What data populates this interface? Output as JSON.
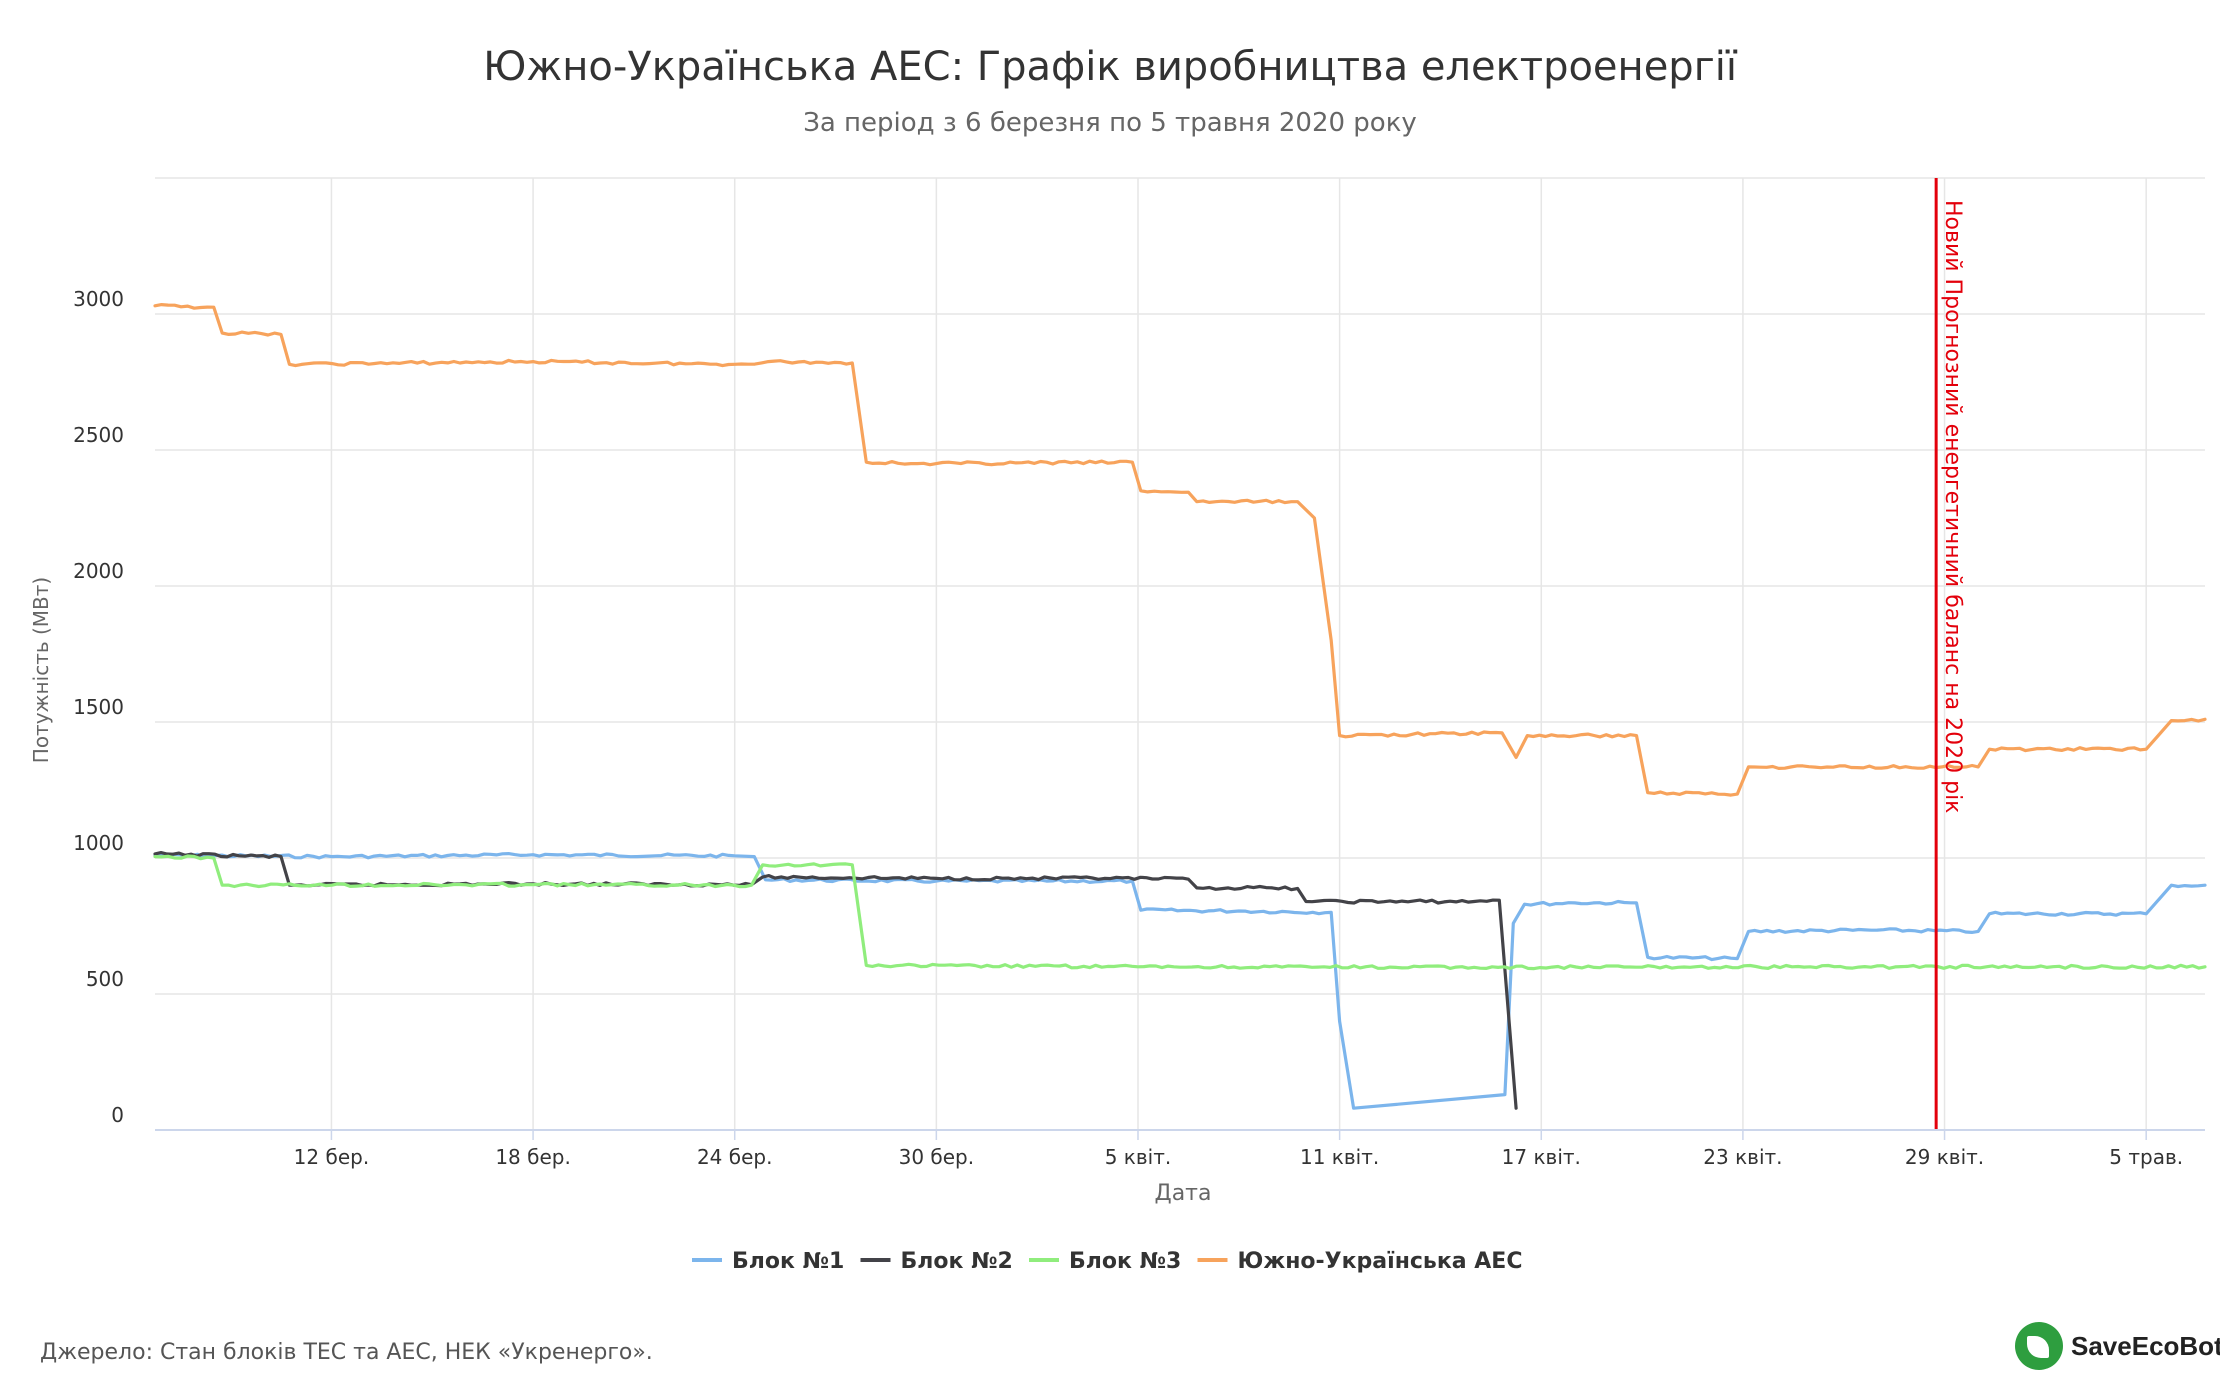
{
  "title": "Южно-Українська АЕС: Графік виробництва електроенергії",
  "subtitle": "За період з 6 березня по 5 травня 2020 року",
  "source": "Джерело: Стан блоків ТЕС та АЕС, НЕК «Укренерго».",
  "brand": "SaveEcoBot",
  "chart_data": {
    "type": "line",
    "title": "Южно-Українська АЕС: Графік виробництва електроенергії",
    "subtitle": "За період з 6 березня по 5 травня 2020 року",
    "xlabel": "Дата",
    "ylabel": "Потужність (МВт)",
    "x_range": [
      "2020-03-06T18:00",
      "2020-05-06T18:00"
    ],
    "ylim": [
      0,
      3500
    ],
    "y_ticks": [
      0,
      500,
      1000,
      1500,
      2000,
      2500,
      3000
    ],
    "x_ticks": [
      {
        "date": "2020-03-12",
        "label": "12 бер."
      },
      {
        "date": "2020-03-18",
        "label": "18 бер."
      },
      {
        "date": "2020-03-24",
        "label": "24 бер."
      },
      {
        "date": "2020-03-30",
        "label": "30 бер."
      },
      {
        "date": "2020-04-05",
        "label": "5 квіт."
      },
      {
        "date": "2020-04-11",
        "label": "11 квіт."
      },
      {
        "date": "2020-04-17",
        "label": "17 квіт."
      },
      {
        "date": "2020-04-23",
        "label": "23 квіт."
      },
      {
        "date": "2020-04-29",
        "label": "29 квіт."
      },
      {
        "date": "2020-05-05",
        "label": "5 трав."
      }
    ],
    "grid": true,
    "legend_position": "bottom-center",
    "annotation": {
      "date": "2020-04-28T18:00",
      "label": "Новий Прогнозний енергетичний баланс на 2020 рік",
      "color": "#e3000b"
    },
    "series": [
      {
        "name": "Блок №1",
        "color": "#7cb5ec",
        "points": [
          [
            "2020-03-06T18:00",
            1010
          ],
          [
            "2020-03-12T00:00",
            1005
          ],
          [
            "2020-03-18T00:00",
            1012
          ],
          [
            "2020-03-24T00:00",
            1008
          ],
          [
            "2020-03-24T14:00",
            1005
          ],
          [
            "2020-03-24T22:00",
            920
          ],
          [
            "2020-03-30T00:00",
            915
          ],
          [
            "2020-04-04T20:00",
            915
          ],
          [
            "2020-04-05T02:00",
            808
          ],
          [
            "2020-04-08T00:00",
            805
          ],
          [
            "2020-04-10T18:00",
            800
          ],
          [
            "2020-04-11T00:00",
            400
          ],
          [
            "2020-04-11T10:00",
            80
          ],
          [
            "2020-04-15T22:00",
            130
          ],
          [
            "2020-04-16T04:00",
            760
          ],
          [
            "2020-04-16T12:00",
            830
          ],
          [
            "2020-04-18T00:00",
            835
          ],
          [
            "2020-04-19T20:00",
            835
          ],
          [
            "2020-04-20T04:00",
            635
          ],
          [
            "2020-04-22T20:00",
            630
          ],
          [
            "2020-04-23T04:00",
            730
          ],
          [
            "2020-04-27T00:00",
            735
          ],
          [
            "2020-04-30T00:00",
            730
          ],
          [
            "2020-04-30T08:00",
            795
          ],
          [
            "2020-05-05T00:00",
            795
          ],
          [
            "2020-05-05T18:00",
            900
          ],
          [
            "2020-05-06T18:00",
            900
          ]
        ]
      },
      {
        "name": "Блок №2",
        "color": "#434348",
        "points": [
          [
            "2020-03-06T18:00",
            1015
          ],
          [
            "2020-03-10T12:00",
            1005
          ],
          [
            "2020-03-10T18:00",
            900
          ],
          [
            "2020-03-18T00:00",
            905
          ],
          [
            "2020-03-24T12:00",
            902
          ],
          [
            "2020-03-24T20:00",
            930
          ],
          [
            "2020-03-30T00:00",
            925
          ],
          [
            "2020-04-04T00:00",
            925
          ],
          [
            "2020-04-06T12:00",
            922
          ],
          [
            "2020-04-06T18:00",
            890
          ],
          [
            "2020-04-09T00:00",
            890
          ],
          [
            "2020-04-09T18:00",
            888
          ],
          [
            "2020-04-10T00:00",
            840
          ],
          [
            "2020-04-15T00:00",
            840
          ],
          [
            "2020-04-15T18:00",
            845
          ],
          [
            "2020-04-16T06:00",
            80
          ]
        ]
      },
      {
        "name": "Блок №3",
        "color": "#90ed7d",
        "points": [
          [
            "2020-03-06T18:00",
            1005
          ],
          [
            "2020-03-08T12:00",
            1000
          ],
          [
            "2020-03-08T18:00",
            900
          ],
          [
            "2020-03-18T00:00",
            902
          ],
          [
            "2020-03-24T12:00",
            900
          ],
          [
            "2020-03-24T20:00",
            975
          ],
          [
            "2020-03-27T12:00",
            975
          ],
          [
            "2020-03-27T22:00",
            605
          ],
          [
            "2020-04-05T00:00",
            600
          ],
          [
            "2020-04-15T00:00",
            598
          ],
          [
            "2020-04-25T00:00",
            600
          ],
          [
            "2020-05-06T18:00",
            600
          ]
        ]
      },
      {
        "name": "Южно-Українська АЕС",
        "color": "#f7a35c",
        "points": [
          [
            "2020-03-06T18:00",
            3030
          ],
          [
            "2020-03-08T12:00",
            3025
          ],
          [
            "2020-03-08T18:00",
            2930
          ],
          [
            "2020-03-10T12:00",
            2925
          ],
          [
            "2020-03-10T18:00",
            2815
          ],
          [
            "2020-03-18T00:00",
            2825
          ],
          [
            "2020-03-24T00:00",
            2815
          ],
          [
            "2020-03-25T00:00",
            2825
          ],
          [
            "2020-03-27T12:00",
            2820
          ],
          [
            "2020-03-27T22:00",
            2455
          ],
          [
            "2020-03-30T00:00",
            2450
          ],
          [
            "2020-04-04T20:00",
            2455
          ],
          [
            "2020-04-05T02:00",
            2350
          ],
          [
            "2020-04-06T12:00",
            2345
          ],
          [
            "2020-04-06T18:00",
            2310
          ],
          [
            "2020-04-09T18:00",
            2310
          ],
          [
            "2020-04-10T06:00",
            2250
          ],
          [
            "2020-04-10T18:00",
            1800
          ],
          [
            "2020-04-11T00:00",
            1450
          ],
          [
            "2020-04-15T20:00",
            1460
          ],
          [
            "2020-04-16T06:00",
            1370
          ],
          [
            "2020-04-16T14:00",
            1450
          ],
          [
            "2020-04-19T20:00",
            1450
          ],
          [
            "2020-04-20T04:00",
            1240
          ],
          [
            "2020-04-22T20:00",
            1235
          ],
          [
            "2020-04-23T04:00",
            1335
          ],
          [
            "2020-04-30T00:00",
            1335
          ],
          [
            "2020-04-30T08:00",
            1400
          ],
          [
            "2020-05-05T00:00",
            1400
          ],
          [
            "2020-05-05T18:00",
            1505
          ],
          [
            "2020-05-06T18:00",
            1510
          ]
        ]
      }
    ]
  }
}
